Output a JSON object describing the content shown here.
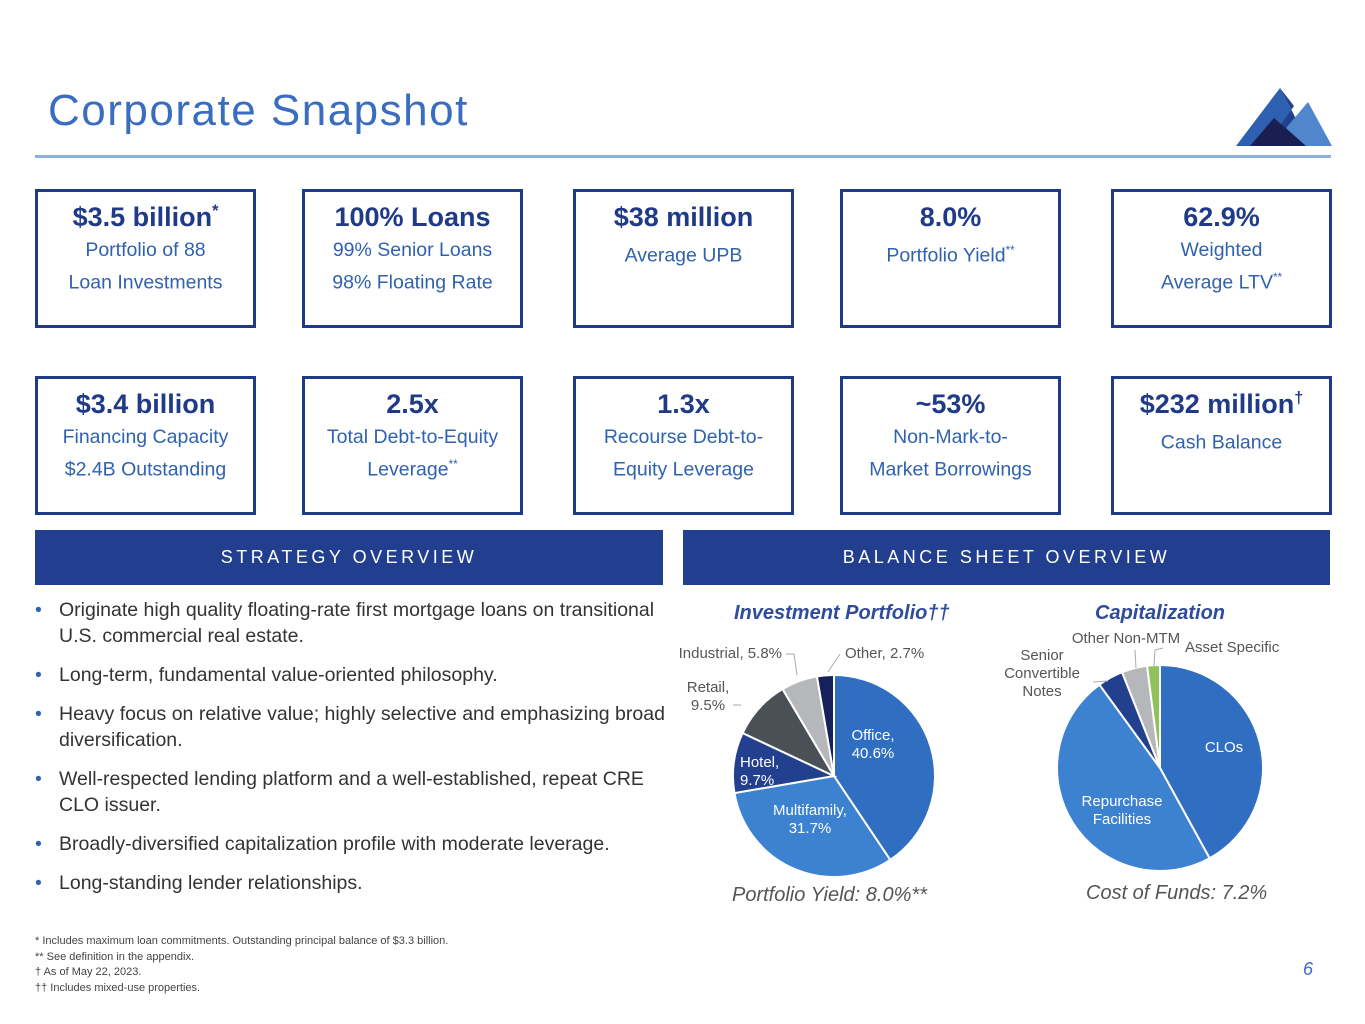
{
  "title": "Corporate Snapshot",
  "metrics": [
    {
      "head": "$3.5 billion",
      "sup": "*",
      "sub": "Portfolio of 88\nLoan Investments"
    },
    {
      "head": "100% Loans",
      "sup": "",
      "sub": "99% Senior Loans\n98% Floating Rate"
    },
    {
      "head": "$38 million",
      "sup": "",
      "sub": "Average UPB"
    },
    {
      "head": "8.0%",
      "sup": "",
      "sub": "Portfolio Yield",
      "subsup": "**"
    },
    {
      "head": "62.9%",
      "sup": "",
      "sub": "Weighted\nAverage LTV",
      "subsup": "**"
    },
    {
      "head": "$3.4 billion",
      "sup": "",
      "sub": "Financing Capacity\n$2.4B Outstanding"
    },
    {
      "head": "2.5x",
      "sup": "",
      "sub": "Total Debt-to-Equity\nLeverage",
      "subsup": "**"
    },
    {
      "head": "1.3x",
      "sup": "",
      "sub": "Recourse Debt-to-\nEquity Leverage"
    },
    {
      "head": "~53%",
      "sup": "",
      "sub": "Non-Mark-to-\nMarket Borrowings"
    },
    {
      "head": "$232 million",
      "sup": "†",
      "sub": "Cash Balance"
    }
  ],
  "sections": {
    "strategy": "STRATEGY OVERVIEW",
    "balance": "BALANCE SHEET OVERVIEW"
  },
  "bullets": [
    "Originate high quality floating-rate first mortgage loans on transitional U.S. commercial real estate.",
    "Long-term, fundamental value-oriented philosophy.",
    "Heavy focus on relative value; highly selective and emphasizing broad diversification.",
    "Well-respected lending platform and a well-established, repeat CRE CLO issuer.",
    "Broadly-diversified capitalization profile with moderate leverage.",
    "Long-standing lender relationships."
  ],
  "chart_data": [
    {
      "type": "pie",
      "title": "Investment Portfolio††",
      "footer": "Portfolio Yield: 8.0%**",
      "slices": [
        {
          "label": "Office,",
          "value_label": "40.6%",
          "value": 40.6,
          "color": "#2f6ec0"
        },
        {
          "label": "Multifamily,",
          "value_label": "31.7%",
          "value": 31.7,
          "color": "#3d82d0"
        },
        {
          "label": "Hotel,",
          "value_label": "9.7%",
          "value": 9.7,
          "color": "#23408f"
        },
        {
          "label": "Retail,",
          "value_label": "9.5%",
          "value": 9.5,
          "color": "#4a5055"
        },
        {
          "label": "Industrial,",
          "value_label": "5.8%",
          "value": 5.8,
          "color": "#b5b7ba"
        },
        {
          "label": "Other,",
          "value_label": "2.7%",
          "value": 2.7,
          "color": "#16205a"
        }
      ]
    },
    {
      "type": "pie",
      "title": "Capitalization",
      "footer": "Cost of Funds: 7.2%",
      "slices": [
        {
          "label": "CLOs",
          "value": 42,
          "color": "#2f6ec0"
        },
        {
          "label": "Repurchase Facilities",
          "value": 48,
          "color": "#3d82d0"
        },
        {
          "label": "Senior Convertible Notes",
          "value": 4,
          "color": "#23408f"
        },
        {
          "label": "Other Non-MTM",
          "value": 4,
          "color": "#b5b7ba"
        },
        {
          "label": "Asset Specific",
          "value": 2,
          "color": "#8fc25a"
        }
      ]
    }
  ],
  "footnotes": [
    "* Includes maximum loan commitments. Outstanding principal balance of $3.3 billion.",
    "** See definition in the appendix.",
    "† As of May 22, 2023.",
    "†† Includes mixed-use properties."
  ],
  "page_number": "6"
}
